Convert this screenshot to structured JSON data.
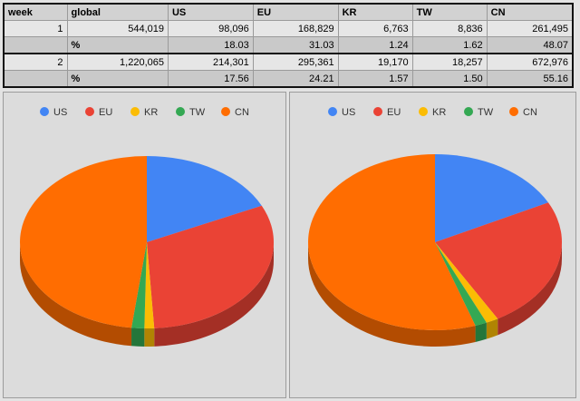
{
  "table": {
    "headers": [
      "week",
      "global",
      "US",
      "EU",
      "KR",
      "TW",
      "CN"
    ],
    "rows": [
      {
        "week": "1",
        "global": "544,019",
        "US": "98,096",
        "EU": "168,829",
        "KR": "6,763",
        "TW": "8,836",
        "CN": "261,495"
      },
      {
        "week": "",
        "global": "%",
        "US": "18.03",
        "EU": "31.03",
        "KR": "1.24",
        "TW": "1.62",
        "CN": "48.07"
      },
      {
        "week": "2",
        "global": "1,220,065",
        "US": "214,301",
        "EU": "295,361",
        "KR": "19,170",
        "TW": "18,257",
        "CN": "672,976"
      },
      {
        "week": "",
        "global": "%",
        "US": "17.56",
        "EU": "24.21",
        "KR": "1.57",
        "TW": "1.50",
        "CN": "55.16"
      }
    ]
  },
  "chart_data": [
    {
      "type": "pie",
      "title": "",
      "legend_position": "top",
      "categories": [
        "US",
        "EU",
        "KR",
        "TW",
        "CN"
      ],
      "values": [
        98096,
        168829,
        6763,
        8836,
        261495
      ],
      "colors": [
        "#4285f4",
        "#ea4335",
        "#fbbc04",
        "#34a853",
        "#ff6d01"
      ]
    },
    {
      "type": "pie",
      "title": "",
      "legend_position": "top",
      "categories": [
        "US",
        "EU",
        "KR",
        "TW",
        "CN"
      ],
      "values": [
        214301,
        295361,
        19170,
        18257,
        672976
      ],
      "colors": [
        "#4285f4",
        "#ea4335",
        "#fbbc04",
        "#34a853",
        "#ff6d01"
      ]
    }
  ]
}
